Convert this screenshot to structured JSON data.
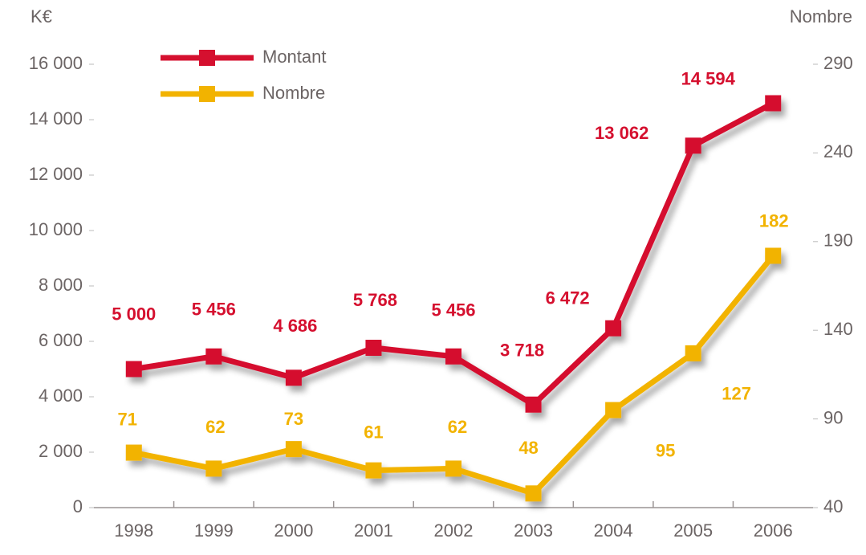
{
  "chart_data": {
    "type": "line",
    "y_label": "K€",
    "y2_label": "Nombre",
    "categories": [
      "1998",
      "1999",
      "2000",
      "2001",
      "2002",
      "2003",
      "2004",
      "2005",
      "2006"
    ],
    "series": [
      {
        "name": "Montant",
        "color": "#d5102f",
        "values": [
          5000,
          5456,
          4686,
          5768,
          5456,
          3718,
          6472,
          13062,
          14594
        ],
        "value_labels": [
          "5 000",
          "5 456",
          "4 686",
          "5 768",
          "5 456",
          "3 718",
          "6 472",
          "13 062",
          "14 594"
        ]
      },
      {
        "name": "Nombre",
        "color": "#f2b300",
        "axis": "y2",
        "values": [
          71,
          62,
          73,
          61,
          62,
          48,
          95,
          127,
          182
        ]
      }
    ],
    "ylim": [
      0,
      16000
    ],
    "yticks": [
      {
        "value": 0,
        "label": "0"
      },
      {
        "value": 2000,
        "label": "2 000"
      },
      {
        "value": 4000,
        "label": "4 000"
      },
      {
        "value": 6000,
        "label": "6 000"
      },
      {
        "value": 8000,
        "label": "8 000"
      },
      {
        "value": 10000,
        "label": "10 000"
      },
      {
        "value": 12000,
        "label": "12 000"
      },
      {
        "value": 14000,
        "label": "14 000"
      },
      {
        "value": 16000,
        "label": "16 000"
      }
    ],
    "y2lim": [
      40,
      290
    ],
    "y2ticks": [
      40,
      90,
      140,
      190,
      240,
      290
    ],
    "grid": false
  }
}
